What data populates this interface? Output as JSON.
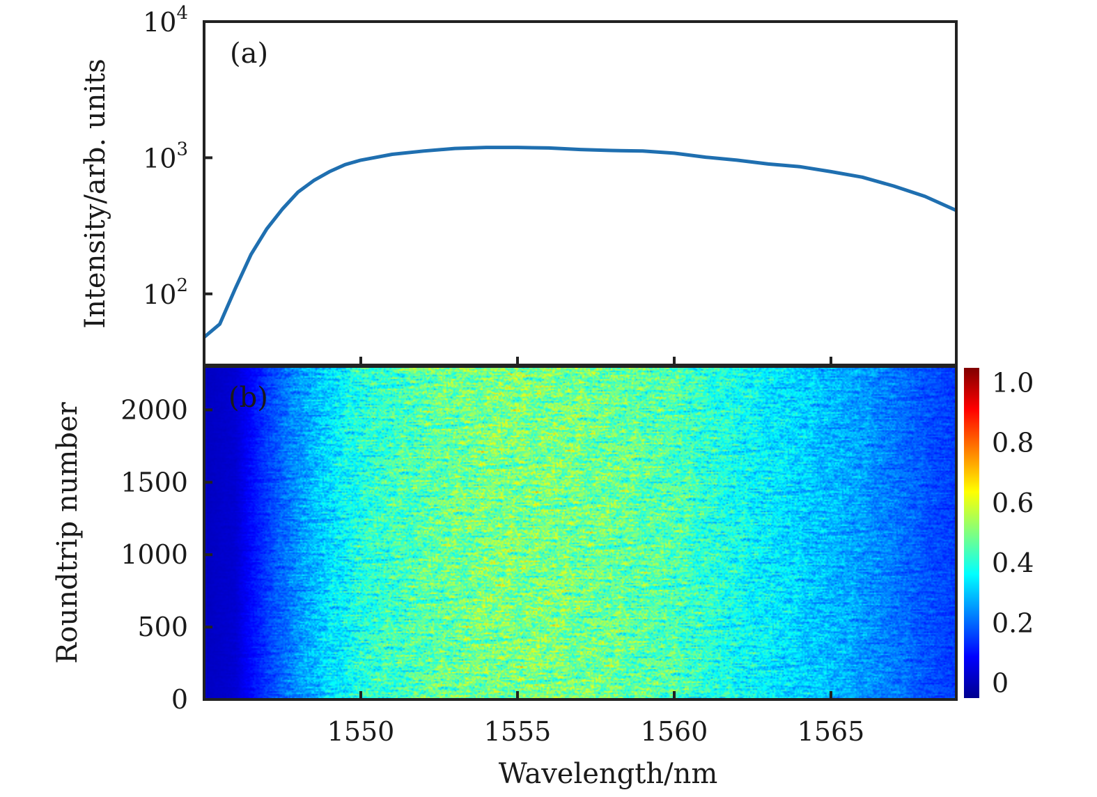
{
  "chart_data": [
    {
      "type": "line",
      "panel_label": "(a)",
      "ylabel": "Intensity/arb. units",
      "yscale": "log",
      "ylim": [
        30,
        10000
      ],
      "xlim": [
        1545,
        1569
      ],
      "y_ticks": [
        {
          "base": "10",
          "exp": "2",
          "value": 100
        },
        {
          "base": "10",
          "exp": "3",
          "value": 1000
        },
        {
          "base": "10",
          "exp": "4",
          "value": 10000
        }
      ],
      "color": "#1f6fb0",
      "x": [
        1545.0,
        1545.5,
        1546.0,
        1546.5,
        1547.0,
        1547.5,
        1548.0,
        1548.5,
        1549.0,
        1549.5,
        1550.0,
        1551.0,
        1552.0,
        1553.0,
        1554.0,
        1555.0,
        1556.0,
        1557.0,
        1558.0,
        1559.0,
        1560.0,
        1561.0,
        1562.0,
        1563.0,
        1564.0,
        1565.0,
        1566.0,
        1567.0,
        1568.0,
        1569.0
      ],
      "y": [
        48,
        60,
        110,
        195,
        300,
        420,
        560,
        680,
        790,
        890,
        960,
        1060,
        1120,
        1170,
        1190,
        1190,
        1180,
        1150,
        1130,
        1120,
        1080,
        1010,
        960,
        900,
        860,
        790,
        720,
        620,
        520,
        410
      ]
    },
    {
      "type": "heatmap",
      "panel_label": "(b)",
      "xlabel": "Wavelength/nm",
      "ylabel": "Roundtrip number",
      "xlim": [
        1545,
        1569
      ],
      "ylim": [
        0,
        2300
      ],
      "x_ticks": [
        "1550",
        "1555",
        "1560",
        "1565"
      ],
      "y_ticks": [
        "0",
        "500",
        "1000",
        "1500",
        "2000"
      ],
      "colormap": "jet",
      "colorbar_ticks": [
        "0",
        "0.2",
        "0.4",
        "0.6",
        "0.8",
        "1.0"
      ],
      "colorbar_range": [
        -0.05,
        1.05
      ],
      "mean_profile_x": [
        1545.0,
        1546.0,
        1547.0,
        1548.0,
        1549.0,
        1550.0,
        1552.0,
        1554.0,
        1556.0,
        1558.0,
        1560.0,
        1562.0,
        1564.0,
        1566.0,
        1567.0,
        1568.0,
        1569.0
      ],
      "mean_profile_value": [
        0.02,
        0.04,
        0.15,
        0.25,
        0.33,
        0.4,
        0.46,
        0.5,
        0.5,
        0.48,
        0.45,
        0.38,
        0.32,
        0.26,
        0.22,
        0.18,
        0.15
      ],
      "noise_amplitude": 0.25
    }
  ]
}
